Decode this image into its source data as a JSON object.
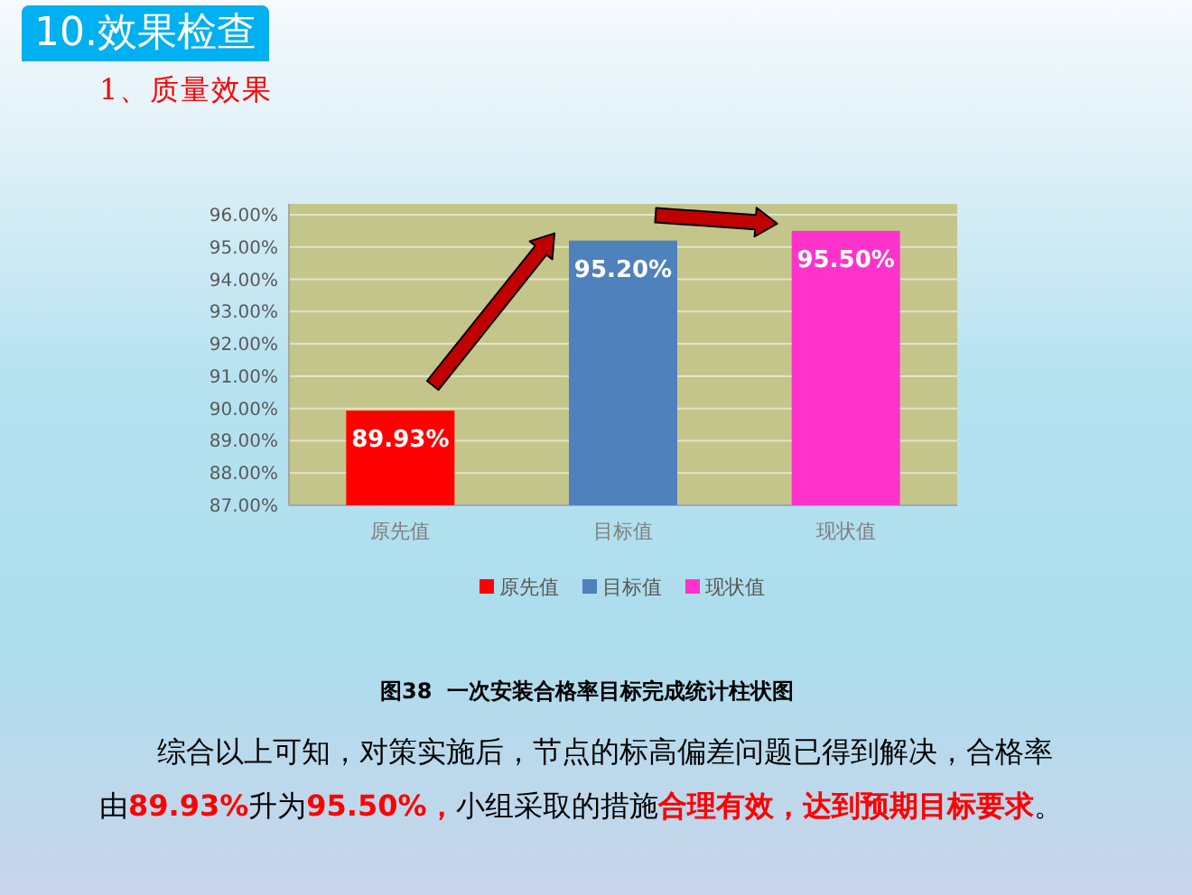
{
  "chart_data": {
    "type": "bar",
    "title": "图38  一次安装合格率目标完成统计柱状图",
    "categories": [
      "原先值",
      "目标值",
      "现状值"
    ],
    "series": [
      {
        "name": "原先值",
        "color": "#ff0000",
        "values": [
          89.93,
          null,
          null
        ],
        "value_labels": [
          "89.93%",
          null,
          null
        ]
      },
      {
        "name": "目标值",
        "color": "#4f81bd",
        "values": [
          null,
          95.2,
          null
        ],
        "value_labels": [
          null,
          "95.20%",
          null
        ]
      },
      {
        "name": "现状值",
        "color": "#ff33cc",
        "values": [
          null,
          null,
          95.5
        ],
        "value_labels": [
          null,
          null,
          "95.50%"
        ]
      }
    ],
    "ylim": [
      87,
      96
    ],
    "yticks": [
      {
        "value": 87,
        "label": "87.00%"
      },
      {
        "value": 88,
        "label": "88.00%"
      },
      {
        "value": 89,
        "label": "89.00%"
      },
      {
        "value": 90,
        "label": "90.00%"
      },
      {
        "value": 91,
        "label": "91.00%"
      },
      {
        "value": 92,
        "label": "92.00%"
      },
      {
        "value": 93,
        "label": "93.00%"
      },
      {
        "value": 94,
        "label": "94.00%"
      },
      {
        "value": 95,
        "label": "95.00%"
      },
      {
        "value": 96,
        "label": "96.00%"
      }
    ],
    "grid": "y",
    "legend": "bottom",
    "annotations": [
      "10.效果检查",
      "1、质量效果",
      "综合以上可知，对策实施后，节点的标高偏差问题已得到解决，合格率由**89.93%**升为**95.50%，**小组采取的措施**合理有效，达到预期目标要求**。"
    ]
  }
}
